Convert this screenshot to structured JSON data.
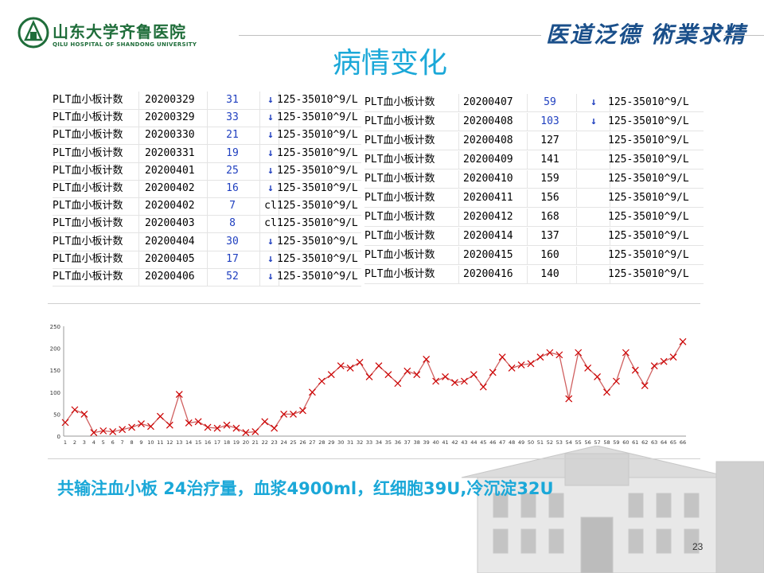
{
  "header": {
    "logo_cn": "山东大学齐鲁医院",
    "logo_en": "QILU HOSPITAL OF SHANDONG UNIVERSITY",
    "motto": "医道泛德 術業求精"
  },
  "title": "病情变化",
  "table_left": {
    "rows": [
      {
        "name": "PLT血小板计数",
        "date": "20200329",
        "value": "31",
        "flag": "↓",
        "range": "125-35010^9/L"
      },
      {
        "name": "PLT血小板计数",
        "date": "20200329",
        "value": "33",
        "flag": "↓",
        "range": "125-35010^9/L"
      },
      {
        "name": "PLT血小板计数",
        "date": "20200330",
        "value": "21",
        "flag": "↓",
        "range": "125-35010^9/L"
      },
      {
        "name": "PLT血小板计数",
        "date": "20200331",
        "value": "19",
        "flag": "↓",
        "range": "125-35010^9/L"
      },
      {
        "name": "PLT血小板计数",
        "date": "20200401",
        "value": "25",
        "flag": "↓",
        "range": "125-35010^9/L"
      },
      {
        "name": "PLT血小板计数",
        "date": "20200402",
        "value": "16",
        "flag": "↓",
        "range": "125-35010^9/L"
      },
      {
        "name": "PLT血小板计数",
        "date": "20200402",
        "value": "7",
        "flag": "cl",
        "range": "125-35010^9/L"
      },
      {
        "name": "PLT血小板计数",
        "date": "20200403",
        "value": "8",
        "flag": "cl",
        "range": "125-35010^9/L"
      },
      {
        "name": "PLT血小板计数",
        "date": "20200404",
        "value": "30",
        "flag": "↓",
        "range": "125-35010^9/L"
      },
      {
        "name": "PLT血小板计数",
        "date": "20200405",
        "value": "17",
        "flag": "↓",
        "range": "125-35010^9/L"
      },
      {
        "name": "PLT血小板计数",
        "date": "20200406",
        "value": "52",
        "flag": "↓",
        "range": "125-35010^9/L"
      }
    ]
  },
  "table_right": {
    "rows": [
      {
        "name": "PLT血小板计数",
        "date": "20200407",
        "value": "59",
        "flag": "↓",
        "range": "125-35010^9/L"
      },
      {
        "name": "PLT血小板计数",
        "date": "20200408",
        "value": "103",
        "flag": "↓",
        "range": "125-35010^9/L"
      },
      {
        "name": "PLT血小板计数",
        "date": "20200408",
        "value": "127",
        "flag": "",
        "range": "125-35010^9/L"
      },
      {
        "name": "PLT血小板计数",
        "date": "20200409",
        "value": "141",
        "flag": "",
        "range": "125-35010^9/L"
      },
      {
        "name": "PLT血小板计数",
        "date": "20200410",
        "value": "159",
        "flag": "",
        "range": "125-35010^9/L"
      },
      {
        "name": "PLT血小板计数",
        "date": "20200411",
        "value": "156",
        "flag": "",
        "range": "125-35010^9/L"
      },
      {
        "name": "PLT血小板计数",
        "date": "20200412",
        "value": "168",
        "flag": "",
        "range": "125-35010^9/L"
      },
      {
        "name": "PLT血小板计数",
        "date": "20200414",
        "value": "137",
        "flag": "",
        "range": "125-35010^9/L"
      },
      {
        "name": "PLT血小板计数",
        "date": "20200415",
        "value": "160",
        "flag": "",
        "range": "125-35010^9/L"
      },
      {
        "name": "PLT血小板计数",
        "date": "20200416",
        "value": "140",
        "flag": "",
        "range": "125-35010^9/L"
      }
    ]
  },
  "colors": {
    "accent": "#1ba8d8",
    "line": "#d06060",
    "marker": "#cc0000",
    "logo_green": "#1f6d3a",
    "motto_blue": "#1a4f8a"
  },
  "chart_data": {
    "type": "line",
    "title": "",
    "xlabel": "",
    "ylabel": "",
    "ylim": [
      0,
      250
    ],
    "yticks": [
      0,
      50,
      100,
      150,
      200,
      250
    ],
    "x": [
      1,
      2,
      3,
      4,
      5,
      6,
      7,
      8,
      9,
      10,
      11,
      12,
      13,
      14,
      15,
      16,
      17,
      18,
      19,
      20,
      21,
      22,
      23,
      24,
      25,
      26,
      27,
      28,
      29,
      30,
      31,
      32,
      33,
      34,
      35,
      36,
      37,
      38,
      39,
      40,
      41,
      42,
      43,
      44,
      45,
      46,
      47,
      48,
      49,
      50,
      51,
      52,
      53,
      54,
      55,
      56,
      57,
      58,
      59,
      60,
      61,
      62,
      63,
      64,
      65,
      66
    ],
    "series": [
      {
        "values": [
          31,
          60,
          50,
          8,
          12,
          10,
          15,
          20,
          28,
          22,
          45,
          25,
          95,
          30,
          33,
          20,
          18,
          25,
          18,
          8,
          10,
          33,
          18,
          50,
          50,
          58,
          100,
          125,
          140,
          160,
          155,
          168,
          135,
          160,
          140,
          120,
          148,
          140,
          175,
          125,
          135,
          122,
          125,
          140,
          112,
          145,
          180,
          155,
          162,
          165,
          180,
          190,
          185,
          85,
          190,
          155,
          135,
          100,
          125,
          190,
          150,
          115,
          160,
          170,
          180,
          215
        ]
      }
    ]
  },
  "summary": "共输注血小板 24治疗量，血浆4900ml，红细胞39U,冷沉淀32U",
  "page_number": "23"
}
